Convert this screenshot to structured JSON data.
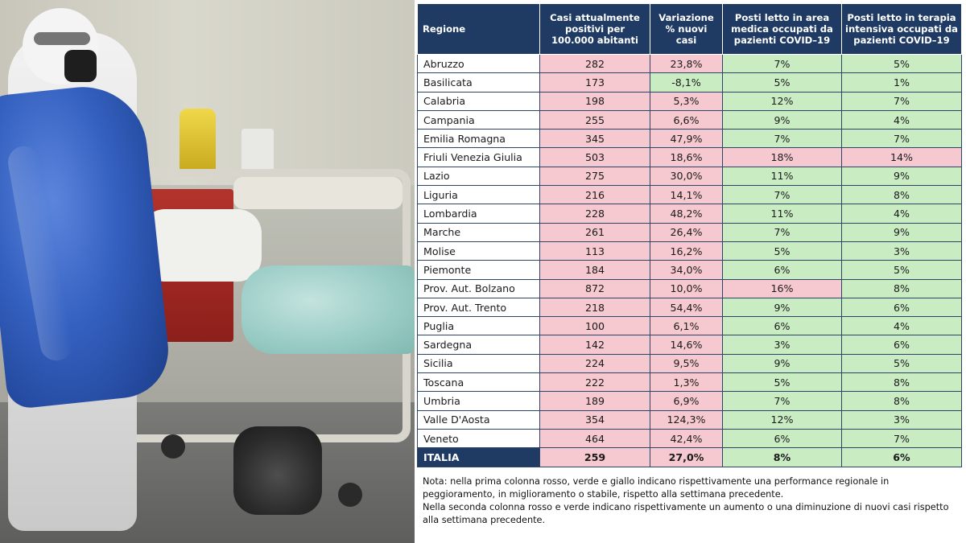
{
  "photo": {
    "description_icon": "hospital-scene-image"
  },
  "table": {
    "headers": [
      "Regione",
      "Casi attualmente positivi per 100.000 abitanti",
      "Variazione % nuovi casi",
      "Posti letto in area medica occupati da pazienti COVID–19",
      "Posti letto in terapia intensiva occupati da pazienti COVID–19"
    ],
    "rows": [
      {
        "region": "Abruzzo",
        "cases": "282",
        "cases_status": "red",
        "variation": "23,8%",
        "variation_status": "red",
        "medical": "7%",
        "medical_status": "green",
        "icu": "5%",
        "icu_status": "green"
      },
      {
        "region": "Basilicata",
        "cases": "173",
        "cases_status": "red",
        "variation": "-8,1%",
        "variation_status": "green",
        "medical": "5%",
        "medical_status": "green",
        "icu": "1%",
        "icu_status": "green"
      },
      {
        "region": "Calabria",
        "cases": "198",
        "cases_status": "red",
        "variation": "5,3%",
        "variation_status": "red",
        "medical": "12%",
        "medical_status": "green",
        "icu": "7%",
        "icu_status": "green"
      },
      {
        "region": "Campania",
        "cases": "255",
        "cases_status": "red",
        "variation": "6,6%",
        "variation_status": "red",
        "medical": "9%",
        "medical_status": "green",
        "icu": "4%",
        "icu_status": "green"
      },
      {
        "region": "Emilia Romagna",
        "cases": "345",
        "cases_status": "red",
        "variation": "47,9%",
        "variation_status": "red",
        "medical": "7%",
        "medical_status": "green",
        "icu": "7%",
        "icu_status": "green"
      },
      {
        "region": "Friuli Venezia Giulia",
        "cases": "503",
        "cases_status": "red",
        "variation": "18,6%",
        "variation_status": "red",
        "medical": "18%",
        "medical_status": "red",
        "icu": "14%",
        "icu_status": "red"
      },
      {
        "region": "Lazio",
        "cases": "275",
        "cases_status": "red",
        "variation": "30,0%",
        "variation_status": "red",
        "medical": "11%",
        "medical_status": "green",
        "icu": "9%",
        "icu_status": "green"
      },
      {
        "region": "Liguria",
        "cases": "216",
        "cases_status": "red",
        "variation": "14,1%",
        "variation_status": "red",
        "medical": "7%",
        "medical_status": "green",
        "icu": "8%",
        "icu_status": "green"
      },
      {
        "region": "Lombardia",
        "cases": "228",
        "cases_status": "red",
        "variation": "48,2%",
        "variation_status": "red",
        "medical": "11%",
        "medical_status": "green",
        "icu": "4%",
        "icu_status": "green"
      },
      {
        "region": "Marche",
        "cases": "261",
        "cases_status": "red",
        "variation": "26,4%",
        "variation_status": "red",
        "medical": "7%",
        "medical_status": "green",
        "icu": "9%",
        "icu_status": "green"
      },
      {
        "region": "Molise",
        "cases": "113",
        "cases_status": "red",
        "variation": "16,2%",
        "variation_status": "red",
        "medical": "5%",
        "medical_status": "green",
        "icu": "3%",
        "icu_status": "green"
      },
      {
        "region": "Piemonte",
        "cases": "184",
        "cases_status": "red",
        "variation": "34,0%",
        "variation_status": "red",
        "medical": "6%",
        "medical_status": "green",
        "icu": "5%",
        "icu_status": "green"
      },
      {
        "region": "Prov. Aut. Bolzano",
        "cases": "872",
        "cases_status": "red",
        "variation": "10,0%",
        "variation_status": "red",
        "medical": "16%",
        "medical_status": "red",
        "icu": "8%",
        "icu_status": "green"
      },
      {
        "region": "Prov. Aut. Trento",
        "cases": "218",
        "cases_status": "red",
        "variation": "54,4%",
        "variation_status": "red",
        "medical": "9%",
        "medical_status": "green",
        "icu": "6%",
        "icu_status": "green"
      },
      {
        "region": "Puglia",
        "cases": "100",
        "cases_status": "red",
        "variation": "6,1%",
        "variation_status": "red",
        "medical": "6%",
        "medical_status": "green",
        "icu": "4%",
        "icu_status": "green"
      },
      {
        "region": "Sardegna",
        "cases": "142",
        "cases_status": "red",
        "variation": "14,6%",
        "variation_status": "red",
        "medical": "3%",
        "medical_status": "green",
        "icu": "6%",
        "icu_status": "green"
      },
      {
        "region": "Sicilia",
        "cases": "224",
        "cases_status": "red",
        "variation": "9,5%",
        "variation_status": "red",
        "medical": "9%",
        "medical_status": "green",
        "icu": "5%",
        "icu_status": "green"
      },
      {
        "region": "Toscana",
        "cases": "222",
        "cases_status": "red",
        "variation": "1,3%",
        "variation_status": "red",
        "medical": "5%",
        "medical_status": "green",
        "icu": "8%",
        "icu_status": "green"
      },
      {
        "region": "Umbria",
        "cases": "189",
        "cases_status": "red",
        "variation": "6,9%",
        "variation_status": "red",
        "medical": "7%",
        "medical_status": "green",
        "icu": "8%",
        "icu_status": "green"
      },
      {
        "region": "Valle D'Aosta",
        "cases": "354",
        "cases_status": "red",
        "variation": "124,3%",
        "variation_status": "red",
        "medical": "12%",
        "medical_status": "green",
        "icu": "3%",
        "icu_status": "green"
      },
      {
        "region": "Veneto",
        "cases": "464",
        "cases_status": "red",
        "variation": "42,4%",
        "variation_status": "red",
        "medical": "6%",
        "medical_status": "green",
        "icu": "7%",
        "icu_status": "green"
      }
    ],
    "total": {
      "region": "ITALIA",
      "cases": "259",
      "cases_status": "red",
      "variation": "27,0%",
      "variation_status": "red",
      "medical": "8%",
      "medical_status": "green",
      "icu": "6%",
      "icu_status": "green"
    }
  },
  "note": {
    "line1": "Nota: nella prima colonna rosso, verde e giallo indicano rispettivamente una performance regionale in peggioramento, in miglioramento o stabile, rispetto alla settimana precedente.",
    "line2": "Nella seconda colonna rosso e verde indicano rispettivamente un aumento o una diminuzione di nuovi casi rispetto alla settimana precedente."
  },
  "colors": {
    "header_bg": "#1f3b64",
    "red_cell": "#f6c8cf",
    "green_cell": "#c9ecc3",
    "red_text": "#a11d1d",
    "green_text": "#1b6b1b"
  }
}
